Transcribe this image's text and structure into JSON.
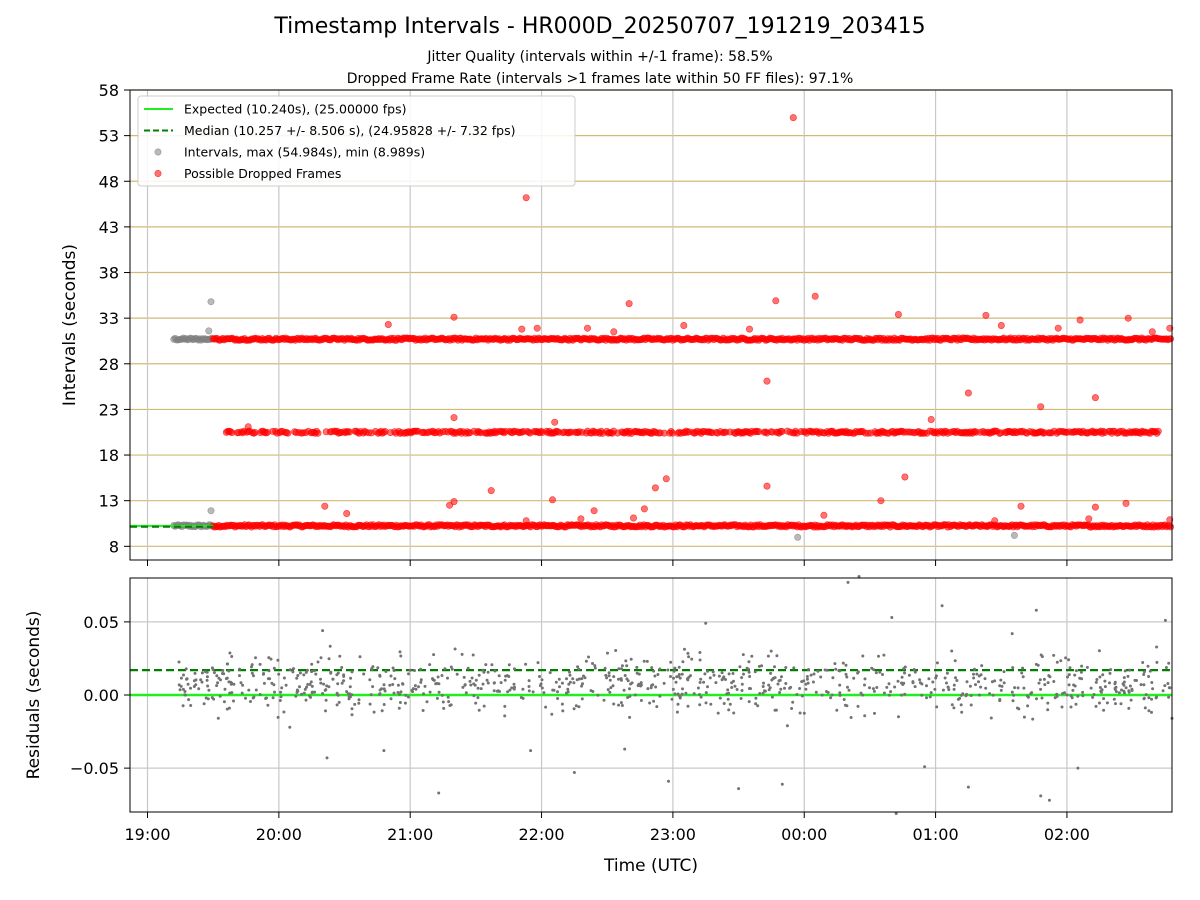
{
  "title": "Timestamp Intervals - HR000D_20250707_191219_203415",
  "subtitle_jitter": "Jitter Quality (intervals within +/-1 frame): 58.5%",
  "subtitle_dropped": "Dropped Frame Rate (intervals >1 frames late within 50 FF files): 97.1%",
  "chart_data": [
    {
      "type": "scatter",
      "panel": "intervals",
      "ylabel": "Intervals (seconds)",
      "ylim": [
        6.5,
        58
      ],
      "yticks": [
        8,
        13,
        18,
        23,
        28,
        33,
        38,
        43,
        48,
        53,
        58
      ],
      "xlim": [
        "18:52",
        "02:48"
      ],
      "grid": true,
      "legend_position": "top-left",
      "legend": [
        {
          "label": "Expected (10.240s), (25.00000 fps)",
          "style": "solid-line",
          "color": "#1fef1f"
        },
        {
          "label": "Median (10.257 +/- 8.506 s), (24.95828 +/- 7.32 fps)",
          "style": "dashed-line",
          "color": "#007f00"
        },
        {
          "label": "Intervals, max (54.984s), min (8.989s)",
          "style": "marker",
          "color": "#808080"
        },
        {
          "label": "Possible Dropped Frames",
          "style": "marker",
          "color": "#ff0000"
        }
      ],
      "expected_interval": 10.24,
      "median_interval": 10.257,
      "series": [
        {
          "name": "Intervals, max (54.984s), min (8.989s)",
          "color": "#808080",
          "bands": [
            {
              "y": 10.24,
              "x_start": "19:12",
              "x_end": "19:30"
            },
            {
              "y": 30.7,
              "x_start": "19:12",
              "x_end": "19:30"
            }
          ],
          "points": [
            {
              "x": "19:29",
              "y": 34.8
            },
            {
              "x": "19:28",
              "y": 31.6
            },
            {
              "x": "19:29",
              "y": 11.9
            },
            {
              "x": "23:57",
              "y": 8.99
            },
            {
              "x": "01:36",
              "y": 9.2
            }
          ]
        },
        {
          "name": "Possible Dropped Frames",
          "color": "#ff0000",
          "bands": [
            {
              "y": 10.24,
              "x_start": "19:30",
              "x_end": "02:48"
            },
            {
              "y": 30.7,
              "x_start": "19:30",
              "x_end": "02:48"
            },
            {
              "y": 20.5,
              "x_start": "19:36",
              "x_end": "02:43"
            }
          ],
          "points": [
            {
              "x": "21:53",
              "y": 46.2
            },
            {
              "x": "23:55",
              "y": 54.98
            },
            {
              "x": "23:47",
              "y": 34.9
            },
            {
              "x": "00:05",
              "y": 35.4
            },
            {
              "x": "22:40",
              "y": 34.6
            },
            {
              "x": "21:20",
              "y": 33.1
            },
            {
              "x": "00:43",
              "y": 33.4
            },
            {
              "x": "01:23",
              "y": 33.3
            },
            {
              "x": "02:28",
              "y": 33.0
            },
            {
              "x": "02:06",
              "y": 32.8
            },
            {
              "x": "20:50",
              "y": 32.3
            },
            {
              "x": "23:05",
              "y": 32.2
            },
            {
              "x": "21:51",
              "y": 31.8
            },
            {
              "x": "21:58",
              "y": 31.9
            },
            {
              "x": "22:21",
              "y": 31.9
            },
            {
              "x": "23:35",
              "y": 31.8
            },
            {
              "x": "22:33",
              "y": 31.5
            },
            {
              "x": "01:30",
              "y": 32.2
            },
            {
              "x": "01:56",
              "y": 31.9
            },
            {
              "x": "02:39",
              "y": 31.5
            },
            {
              "x": "02:47",
              "y": 31.9
            },
            {
              "x": "23:43",
              "y": 26.1
            },
            {
              "x": "01:15",
              "y": 24.8
            },
            {
              "x": "02:13",
              "y": 24.3
            },
            {
              "x": "01:48",
              "y": 23.3
            },
            {
              "x": "21:20",
              "y": 22.1
            },
            {
              "x": "00:58",
              "y": 21.9
            },
            {
              "x": "22:06",
              "y": 21.6
            },
            {
              "x": "19:46",
              "y": 21.1
            },
            {
              "x": "22:57",
              "y": 15.4
            },
            {
              "x": "00:46",
              "y": 15.6
            },
            {
              "x": "22:52",
              "y": 14.4
            },
            {
              "x": "23:43",
              "y": 14.6
            },
            {
              "x": "21:37",
              "y": 14.1
            },
            {
              "x": "20:21",
              "y": 12.4
            },
            {
              "x": "20:31",
              "y": 11.6
            },
            {
              "x": "21:20",
              "y": 12.9
            },
            {
              "x": "21:18",
              "y": 12.5
            },
            {
              "x": "22:05",
              "y": 13.1
            },
            {
              "x": "22:24",
              "y": 11.9
            },
            {
              "x": "22:47",
              "y": 12.1
            },
            {
              "x": "22:42",
              "y": 11.1
            },
            {
              "x": "22:18",
              "y": 11.0
            },
            {
              "x": "21:53",
              "y": 10.8
            },
            {
              "x": "00:35",
              "y": 13.0
            },
            {
              "x": "00:09",
              "y": 11.4
            },
            {
              "x": "01:39",
              "y": 12.4
            },
            {
              "x": "02:13",
              "y": 12.3
            },
            {
              "x": "02:27",
              "y": 12.7
            },
            {
              "x": "02:10",
              "y": 11.0
            },
            {
              "x": "01:27",
              "y": 10.8
            },
            {
              "x": "02:47",
              "y": 10.9
            }
          ]
        }
      ]
    },
    {
      "type": "scatter",
      "panel": "residuals",
      "xlabel": "Time (UTC)",
      "ylabel": "Residuals (seconds)",
      "ylim": [
        -0.08,
        0.08
      ],
      "yticks": [
        "−0.05",
        "0.00",
        "0.05"
      ],
      "xlim": [
        "18:52",
        "02:48"
      ],
      "xticks": [
        "19:00",
        "20:00",
        "21:00",
        "22:00",
        "23:00",
        "00:00",
        "01:00",
        "02:00"
      ],
      "grid": true,
      "expected_residual": 0.0,
      "median_residual": 0.017,
      "series": [
        {
          "name": "Residuals",
          "color": "#737373",
          "x_range": [
            "19:14",
            "02:48"
          ],
          "typical_range": [
            -0.02,
            0.035
          ],
          "points": [
            {
              "x": "20:05",
              "y": -0.022
            },
            {
              "x": "20:20",
              "y": 0.044
            },
            {
              "x": "20:22",
              "y": -0.043
            },
            {
              "x": "20:48",
              "y": -0.038
            },
            {
              "x": "21:13",
              "y": -0.067
            },
            {
              "x": "21:55",
              "y": -0.038
            },
            {
              "x": "22:15",
              "y": -0.053
            },
            {
              "x": "22:38",
              "y": -0.037
            },
            {
              "x": "22:58",
              "y": -0.059
            },
            {
              "x": "23:15",
              "y": 0.049
            },
            {
              "x": "23:30",
              "y": -0.064
            },
            {
              "x": "23:50",
              "y": -0.061
            },
            {
              "x": "00:20",
              "y": 0.077
            },
            {
              "x": "00:25",
              "y": 0.081
            },
            {
              "x": "00:40",
              "y": 0.053
            },
            {
              "x": "00:55",
              "y": -0.049
            },
            {
              "x": "01:03",
              "y": 0.061
            },
            {
              "x": "01:15",
              "y": -0.063
            },
            {
              "x": "01:35",
              "y": 0.042
            },
            {
              "x": "01:48",
              "y": -0.069
            },
            {
              "x": "01:46",
              "y": 0.058
            },
            {
              "x": "01:52",
              "y": -0.072
            },
            {
              "x": "02:05",
              "y": -0.05
            },
            {
              "x": "02:45",
              "y": 0.051
            },
            {
              "x": "02:48",
              "y": -0.016
            },
            {
              "x": "00:42",
              "y": -0.081
            }
          ]
        }
      ]
    }
  ]
}
